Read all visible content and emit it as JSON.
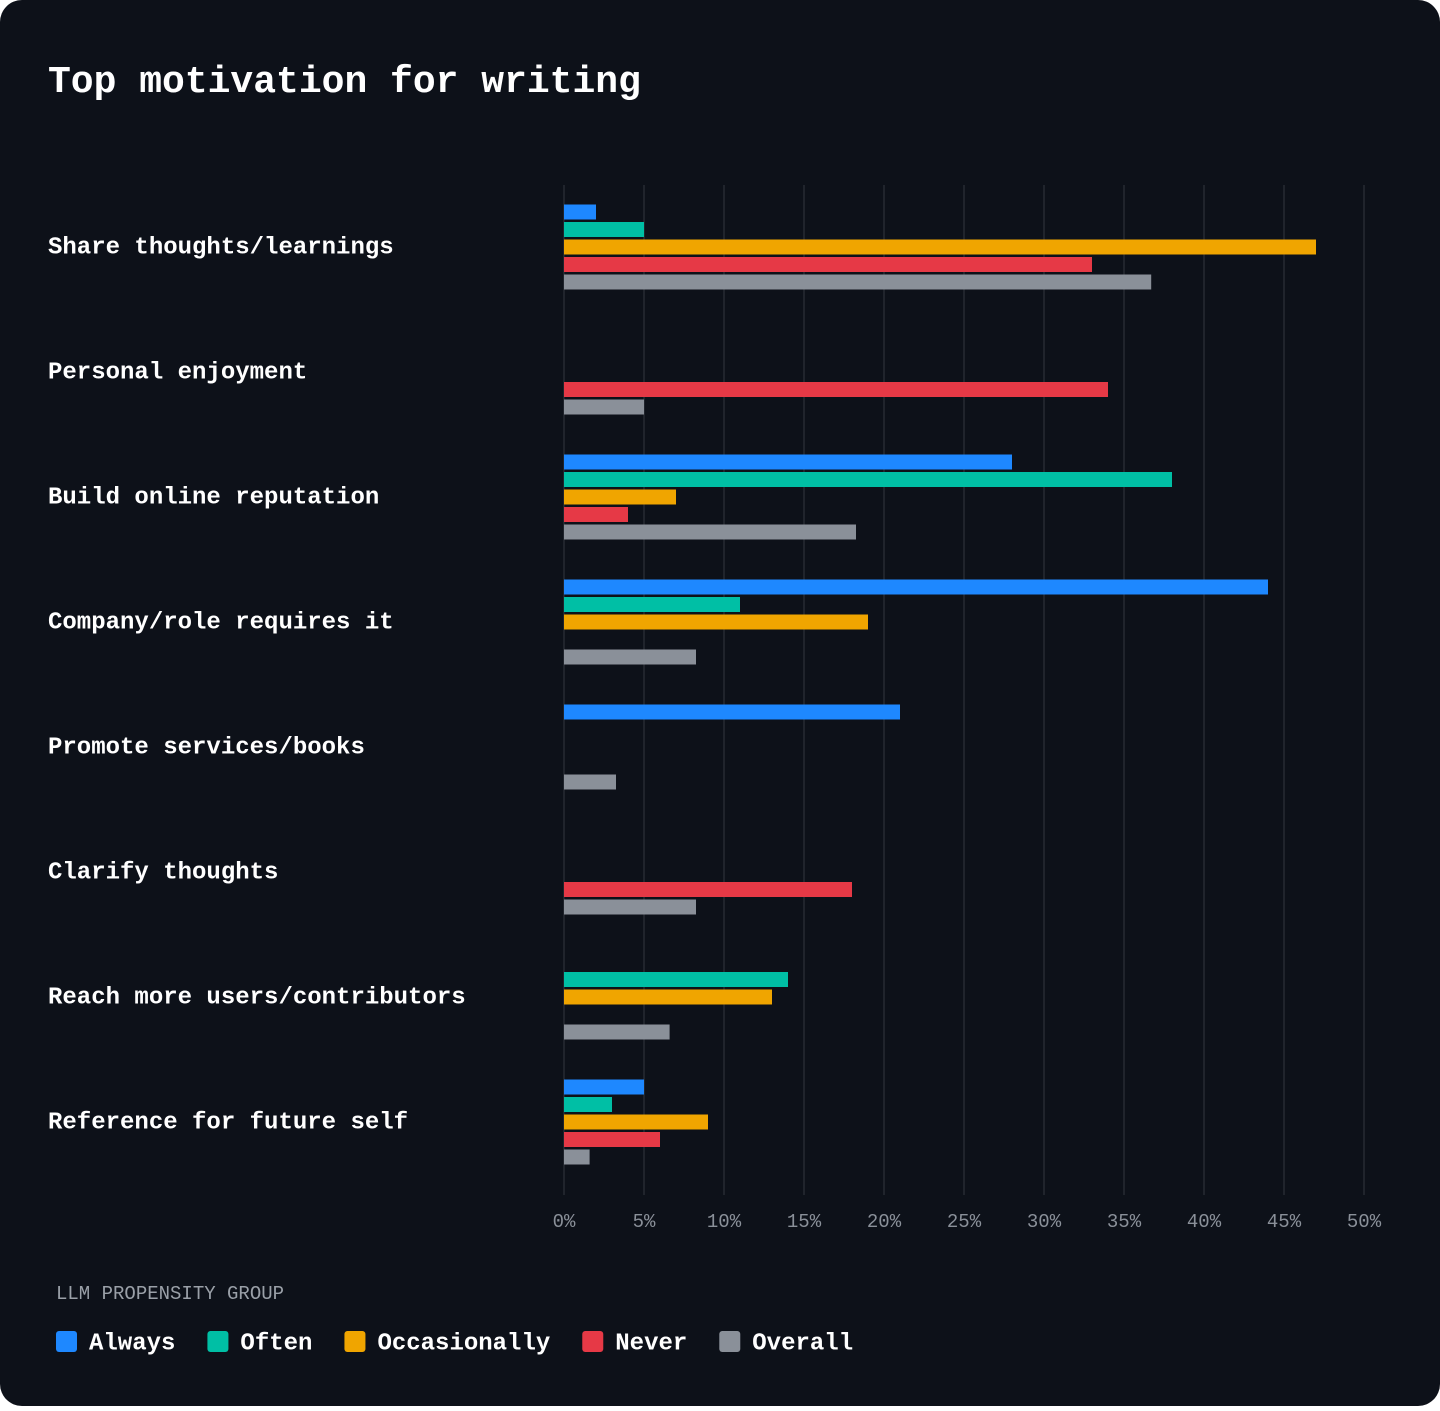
{
  "chart_data": {
    "type": "hbar",
    "title": "Top motivation for writing",
    "categories": [
      "Share thoughts/learnings",
      "Personal enjoyment",
      "Build online reputation",
      "Company/role requires it",
      "Promote services/books",
      "Clarify thoughts",
      "Reach more users/contributors",
      "Reference for future self"
    ],
    "series": [
      {
        "name": "Always",
        "color": "#1e88ff",
        "values": [
          2,
          0,
          28,
          44,
          21,
          0,
          0,
          5
        ]
      },
      {
        "name": "Often",
        "color": "#00bfa5",
        "values": [
          5,
          0,
          38,
          11,
          0,
          0,
          14,
          3
        ]
      },
      {
        "name": "Occasionally",
        "color": "#f0a500",
        "values": [
          47,
          0,
          7,
          19,
          0,
          0,
          13,
          9
        ]
      },
      {
        "name": "Never",
        "color": "#e63946",
        "values": [
          33,
          34,
          4,
          0,
          0,
          18,
          0,
          6
        ]
      },
      {
        "name": "Overall",
        "color": "#8a9099",
        "values": [
          36.7,
          5,
          18.25,
          8.25,
          3.25,
          8.25,
          6.6,
          1.6
        ]
      }
    ],
    "xlim": [
      0,
      50
    ],
    "xticks": [
      {
        "value": 0,
        "label": "0%"
      },
      {
        "value": 5,
        "label": "5%"
      },
      {
        "value": 10,
        "label": "10%"
      },
      {
        "value": 15,
        "label": "15%"
      },
      {
        "value": 20,
        "label": "20%"
      },
      {
        "value": 25,
        "label": "25%"
      },
      {
        "value": 30,
        "label": "30%"
      },
      {
        "value": 35,
        "label": "35%"
      },
      {
        "value": 40,
        "label": "40%"
      },
      {
        "value": 45,
        "label": "45%"
      },
      {
        "value": 50,
        "label": "50%"
      }
    ],
    "grid": true,
    "legend_title": "LLM PROPENSITY GROUP"
  }
}
